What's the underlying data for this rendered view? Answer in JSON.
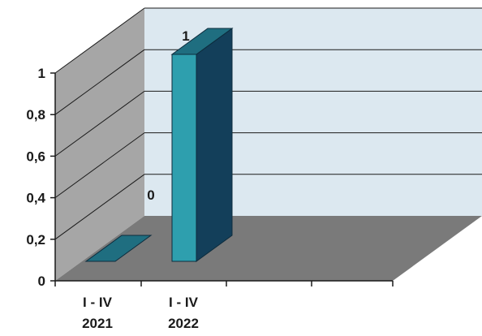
{
  "chart_data": {
    "type": "bar",
    "style": "3d-column",
    "categories": [
      {
        "line1": "I - IV",
        "line2": "2021"
      },
      {
        "line1": "I - IV",
        "line2": "2022"
      }
    ],
    "values": [
      0,
      1
    ],
    "data_labels": [
      "0",
      "1"
    ],
    "yticks": [
      "0",
      "0,2",
      "0,4",
      "0,6",
      "0,8",
      "1"
    ],
    "ylim": [
      0,
      1
    ],
    "grid": true,
    "legend": "none",
    "colors": {
      "back_wall": "#dce8f0",
      "side_wall": "#a6a6a6",
      "floor": "#7a7a7a",
      "bar_front": "#2e9fae",
      "bar_side": "#133f5a",
      "bar_top": "#1f6e80",
      "grid": "#1a1a1a"
    }
  }
}
